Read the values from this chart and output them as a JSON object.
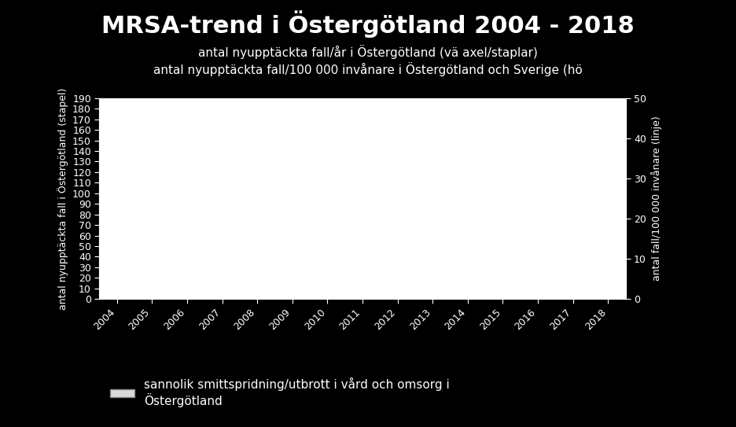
{
  "title": "MRSA-trend i Östergötland 2004 - 2018",
  "subtitle1": "antal nyupptäckta fall/år i Östergötland (vä axel/staplar)",
  "subtitle2": "antal nyupptäckta fall/100 000 invånare i Östergötland och Sverige (hö",
  "ylabel_left": "antal nyupptäckta fall i Östergötland (stapel)",
  "ylabel_right": "antal fall/100 000 invånare (linje)",
  "years": [
    2004,
    2005,
    2006,
    2007,
    2008,
    2009,
    2010,
    2011,
    2012,
    2013,
    2014,
    2015,
    2016,
    2017,
    2018
  ],
  "ylim_left": [
    0,
    190
  ],
  "ylim_right": [
    0,
    50
  ],
  "yticks_left": [
    0,
    10,
    20,
    30,
    40,
    50,
    60,
    70,
    80,
    90,
    100,
    110,
    120,
    130,
    140,
    150,
    160,
    170,
    180,
    190
  ],
  "yticks_right": [
    0,
    10,
    20,
    30,
    40,
    50
  ],
  "background_color": "#000000",
  "plot_area_color": "#ffffff",
  "text_color": "#ffffff",
  "legend_text": "sannolik smittspridning/utbrott i vård och omsorg i\nÖstergötland",
  "legend_patch_color": "#d9d9d9",
  "title_fontsize": 22,
  "subtitle_fontsize": 11,
  "axis_label_fontsize": 9,
  "tick_fontsize": 9,
  "legend_fontsize": 11
}
